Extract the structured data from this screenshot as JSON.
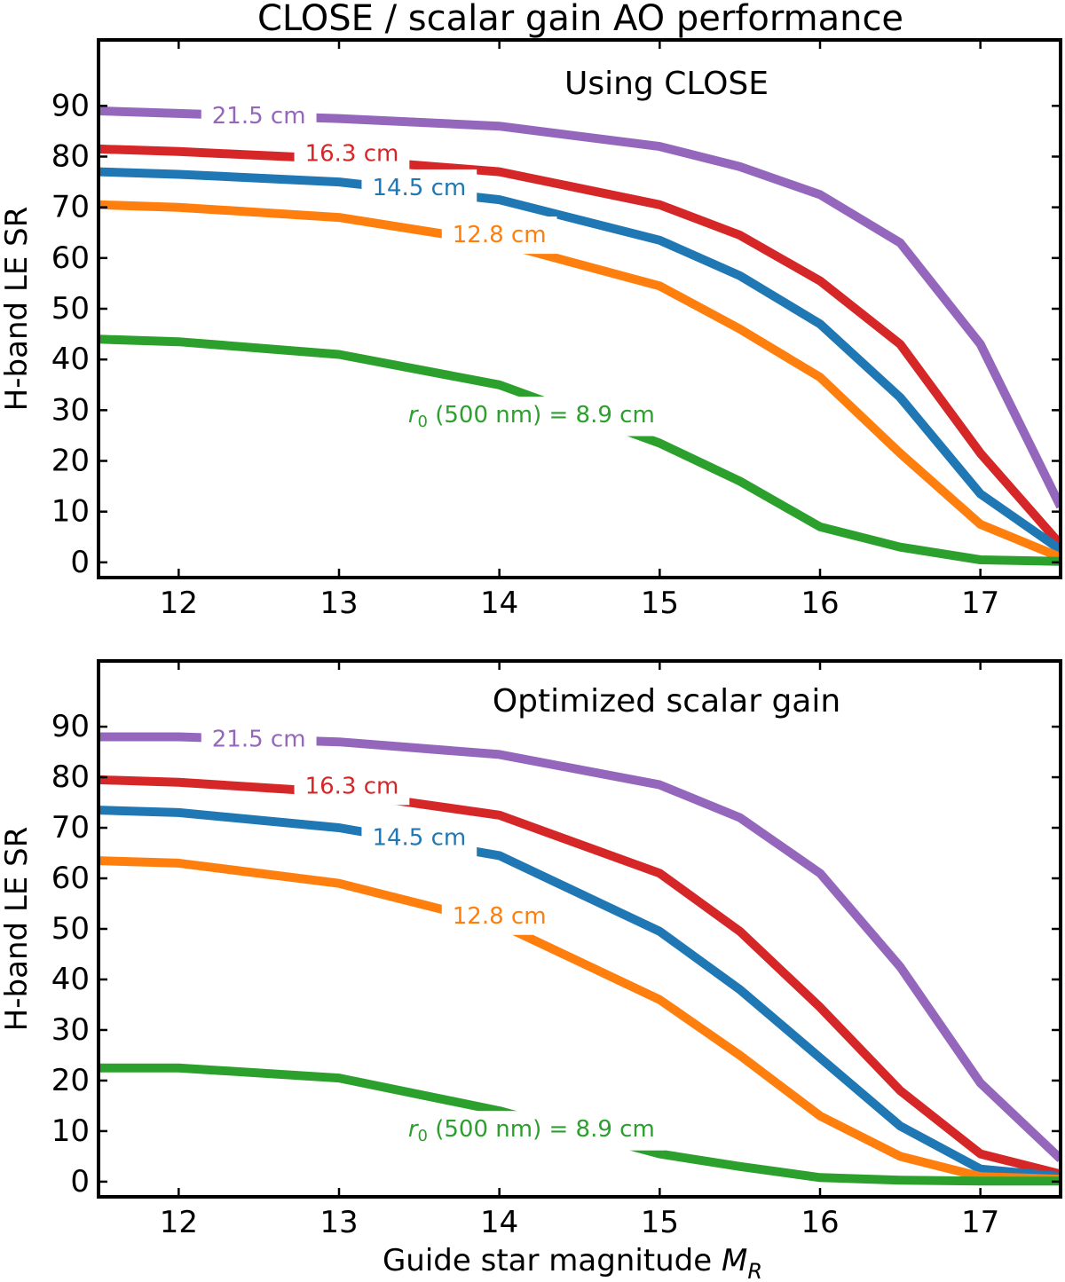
{
  "title": "CLOSE / scalar gain AO performance",
  "colors": {
    "21.5": "#9467bd",
    "16.3": "#d62728",
    "14.5": "#1f77b4",
    "12.8": "#ff7f0e",
    "8.9": "#2ca02c"
  },
  "chart_data": [
    {
      "type": "line",
      "title": "Using CLOSE",
      "xlabel": "",
      "ylabel": "H-band LE SR",
      "xlim": [
        11.5,
        17.5
      ],
      "ylim": [
        -3,
        103
      ],
      "xticks": [
        12,
        13,
        14,
        15,
        16,
        17
      ],
      "yticks": [
        0,
        10,
        20,
        30,
        40,
        50,
        60,
        70,
        80,
        90
      ],
      "x": [
        11.5,
        12,
        13,
        14,
        15,
        15.5,
        16,
        16.5,
        17,
        17.5
      ],
      "series": [
        {
          "key": "21.5",
          "name": "21.5 cm",
          "values": [
            89,
            88.5,
            87.5,
            86,
            82,
            78,
            72.5,
            63,
            43,
            11
          ]
        },
        {
          "key": "16.3",
          "name": "16.3 cm",
          "values": [
            81.5,
            81,
            79.5,
            77,
            70.5,
            64.5,
            55.5,
            43,
            21.5,
            3.5
          ]
        },
        {
          "key": "14.5",
          "name": "14.5 cm",
          "values": [
            77,
            76.5,
            75,
            71.5,
            63.5,
            56.5,
            47,
            32.5,
            13.5,
            2.5
          ]
        },
        {
          "key": "12.8",
          "name": "12.8 cm",
          "values": [
            70.5,
            70,
            68,
            63,
            54.5,
            46,
            36.5,
            21.5,
            7.5,
            1
          ]
        },
        {
          "key": "8.9",
          "name": "r0 (500 nm) = 8.9 cm",
          "values": [
            44,
            43.5,
            41,
            35,
            23.5,
            16,
            7,
            3,
            0.5,
            0.2
          ]
        }
      ],
      "labels": [
        {
          "key": "21.5",
          "text": "21.5 cm",
          "x": 12.5,
          "y": 88
        },
        {
          "key": "16.3",
          "text": "16.3 cm",
          "x": 13.08,
          "y": 80.5
        },
        {
          "key": "14.5",
          "text": "14.5 cm",
          "x": 13.5,
          "y": 73.8
        },
        {
          "key": "12.8",
          "text": "12.8 cm",
          "x": 14,
          "y": 64.5
        },
        {
          "key": "8.9",
          "text_prefix": "r",
          "text_sub": "0",
          "text": " (500 nm) = 8.9 cm",
          "x": 14.2,
          "y": 29
        }
      ]
    },
    {
      "type": "line",
      "title": "Optimized scalar gain",
      "xlabel": "Guide star magnitude M",
      "xlabel_sub": "R",
      "ylabel": "H-band LE SR",
      "xlim": [
        11.5,
        17.5
      ],
      "ylim": [
        -3,
        103
      ],
      "xticks": [
        12,
        13,
        14,
        15,
        16,
        17
      ],
      "yticks": [
        0,
        10,
        20,
        30,
        40,
        50,
        60,
        70,
        80,
        90
      ],
      "x": [
        11.5,
        12,
        13,
        14,
        15,
        15.5,
        16,
        16.5,
        17,
        17.5
      ],
      "series": [
        {
          "key": "21.5",
          "name": "21.5 cm",
          "values": [
            88,
            88,
            87,
            84.5,
            78.5,
            72,
            61,
            42.5,
            19.5,
            4.5
          ]
        },
        {
          "key": "16.3",
          "name": "16.3 cm",
          "values": [
            79.5,
            79,
            77,
            72.5,
            61,
            49.5,
            34.5,
            18,
            5.5,
            1.5
          ]
        },
        {
          "key": "14.5",
          "name": "14.5 cm",
          "values": [
            73.5,
            73,
            70,
            64.5,
            49.5,
            38,
            24.5,
            11,
            2.5,
            1
          ]
        },
        {
          "key": "12.8",
          "name": "12.8 cm",
          "values": [
            63.5,
            63,
            59,
            51,
            36,
            25,
            13,
            5,
            1,
            0.5
          ]
        },
        {
          "key": "8.9",
          "name": "r0 (500 nm) = 8.9 cm",
          "values": [
            22.5,
            22.5,
            20.5,
            14,
            5.5,
            3,
            0.8,
            0.3,
            0.1,
            0.1
          ]
        }
      ],
      "labels": [
        {
          "key": "21.5",
          "text": "21.5 cm",
          "x": 12.5,
          "y": 87.5
        },
        {
          "key": "16.3",
          "text": "16.3 cm",
          "x": 13.08,
          "y": 78.2
        },
        {
          "key": "14.5",
          "text": "14.5 cm",
          "x": 13.5,
          "y": 68
        },
        {
          "key": "12.8",
          "text": "12.8 cm",
          "x": 14,
          "y": 52.5
        },
        {
          "key": "8.9",
          "text_prefix": "r",
          "text_sub": "0",
          "text": " (500 nm) = 8.9 cm",
          "x": 14.2,
          "y": 10.3
        }
      ]
    }
  ]
}
